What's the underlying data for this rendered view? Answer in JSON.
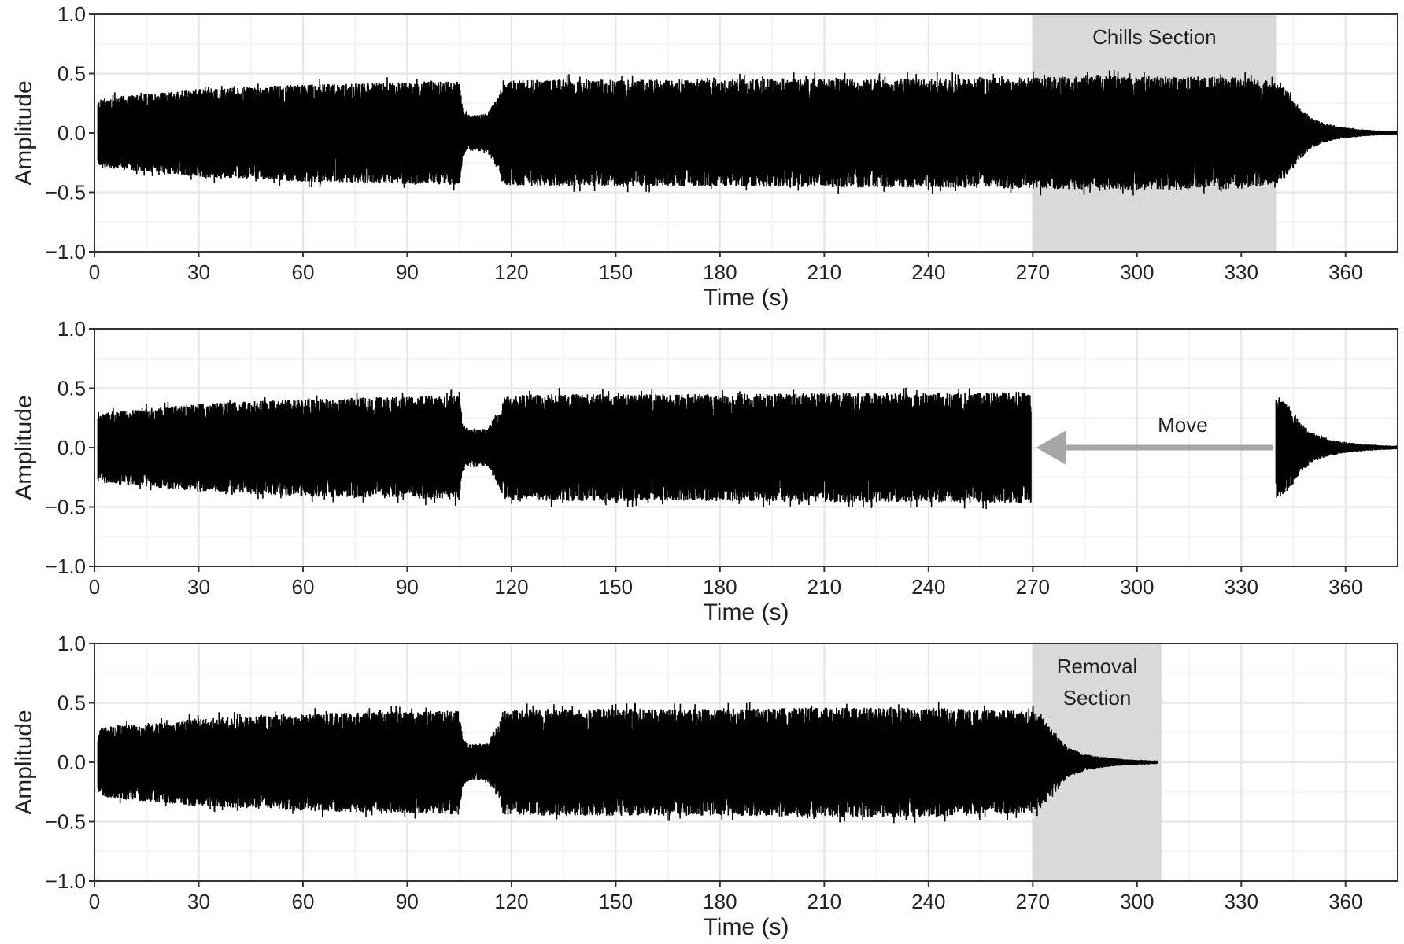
{
  "chart_data": [
    {
      "type": "line",
      "ylabel": "Amplitude",
      "xlabel": "Time (s)",
      "xlim": [
        0,
        375
      ],
      "ylim": [
        -1.0,
        1.0
      ],
      "x_ticks": [
        0,
        30,
        60,
        90,
        120,
        150,
        180,
        210,
        240,
        270,
        300,
        330,
        360
      ],
      "y_ticks": [
        -1.0,
        -0.5,
        0.0,
        0.5,
        1.0
      ],
      "x_tick_labels": [
        "0",
        "30",
        "60",
        "90",
        "120",
        "150",
        "180",
        "210",
        "240",
        "270",
        "300",
        "330",
        "360"
      ],
      "y_tick_labels": [
        "−1.0",
        "−0.5",
        "0.0",
        "0.5",
        "1.0"
      ],
      "grid": true,
      "series": [
        {
          "style": "waveform",
          "color": "#000000",
          "envelope": {
            "t": [
              1,
              3,
              15,
              30,
              60,
              90,
              105,
              106,
              108,
              113,
              115,
              116,
              118,
              130,
              150,
              180,
              210,
              240,
              270,
              300,
              330,
              340,
              343,
              346,
              350,
              355,
              360,
              365,
              370,
              375
            ],
            "amp": [
              0.27,
              0.3,
              0.33,
              0.37,
              0.41,
              0.43,
              0.44,
              0.2,
              0.15,
              0.16,
              0.26,
              0.3,
              0.44,
              0.45,
              0.45,
              0.45,
              0.46,
              0.46,
              0.47,
              0.48,
              0.47,
              0.43,
              0.37,
              0.25,
              0.13,
              0.07,
              0.045,
              0.03,
              0.02,
              0.015
            ]
          }
        }
      ],
      "shaded_regions": [
        {
          "x0": 270,
          "x1": 340,
          "color": "#d9d9d9",
          "label": "Chills Section"
        }
      ]
    },
    {
      "type": "line",
      "ylabel": "Amplitude",
      "xlabel": "Time (s)",
      "xlim": [
        0,
        375
      ],
      "ylim": [
        -1.0,
        1.0
      ],
      "x_ticks": [
        0,
        30,
        60,
        90,
        120,
        150,
        180,
        210,
        240,
        270,
        300,
        330,
        360
      ],
      "y_ticks": [
        -1.0,
        -0.5,
        0.0,
        0.5,
        1.0
      ],
      "x_tick_labels": [
        "0",
        "30",
        "60",
        "90",
        "120",
        "150",
        "180",
        "210",
        "240",
        "270",
        "300",
        "330",
        "360"
      ],
      "y_tick_labels": [
        "−1.0",
        "−0.5",
        "0.0",
        "0.5",
        "1.0"
      ],
      "grid": true,
      "series": [
        {
          "style": "waveform",
          "color": "#000000",
          "envelope": {
            "t": [
              1,
              3,
              15,
              30,
              60,
              90,
              105,
              106,
              108,
              113,
              115,
              116,
              118,
              130,
              150,
              180,
              210,
              240,
              269.5
            ],
            "amp": [
              0.27,
              0.3,
              0.33,
              0.37,
              0.41,
              0.43,
              0.44,
              0.2,
              0.15,
              0.16,
              0.26,
              0.3,
              0.44,
              0.45,
              0.45,
              0.45,
              0.46,
              0.46,
              0.47
            ]
          }
        },
        {
          "style": "waveform",
          "color": "#000000",
          "envelope": {
            "t": [
              340,
              341,
              343,
              346,
              350,
              355,
              360,
              365,
              370,
              375
            ],
            "amp": [
              0.43,
              0.42,
              0.37,
              0.25,
              0.13,
              0.07,
              0.045,
              0.03,
              0.02,
              0.015
            ]
          }
        }
      ],
      "arrow": {
        "from": [
          339,
          0.0
        ],
        "to": [
          271,
          0.0
        ],
        "color": "#a6a6a6",
        "label": "Move"
      }
    },
    {
      "type": "line",
      "ylabel": "Amplitude",
      "xlabel": "Time (s)",
      "xlim": [
        0,
        375
      ],
      "ylim": [
        -1.0,
        1.0
      ],
      "x_ticks": [
        0,
        30,
        60,
        90,
        120,
        150,
        180,
        210,
        240,
        270,
        300,
        330,
        360
      ],
      "y_ticks": [
        -1.0,
        -0.5,
        0.0,
        0.5,
        1.0
      ],
      "x_tick_labels": [
        "0",
        "30",
        "60",
        "90",
        "120",
        "150",
        "180",
        "210",
        "240",
        "270",
        "300",
        "330",
        "360"
      ],
      "y_tick_labels": [
        "−1.0",
        "−0.5",
        "0.0",
        "0.5",
        "1.0"
      ],
      "grid": true,
      "series": [
        {
          "style": "waveform",
          "color": "#000000",
          "envelope": {
            "t": [
              1,
              3,
              15,
              30,
              60,
              90,
              105,
              106,
              108,
              113,
              115,
              116,
              118,
              130,
              150,
              180,
              210,
              240,
              270,
              273,
              276,
              280,
              285,
              290,
              295,
              300,
              306
            ],
            "amp": [
              0.27,
              0.3,
              0.33,
              0.37,
              0.41,
              0.43,
              0.44,
              0.2,
              0.15,
              0.16,
              0.26,
              0.3,
              0.44,
              0.45,
              0.45,
              0.45,
              0.46,
              0.46,
              0.43,
              0.37,
              0.25,
              0.13,
              0.07,
              0.045,
              0.03,
              0.02,
              0.015
            ]
          }
        }
      ],
      "shaded_regions": [
        {
          "x0": 270,
          "x1": 307,
          "color": "#d9d9d9",
          "label_lines": [
            "Removal",
            "Section"
          ]
        }
      ]
    }
  ]
}
